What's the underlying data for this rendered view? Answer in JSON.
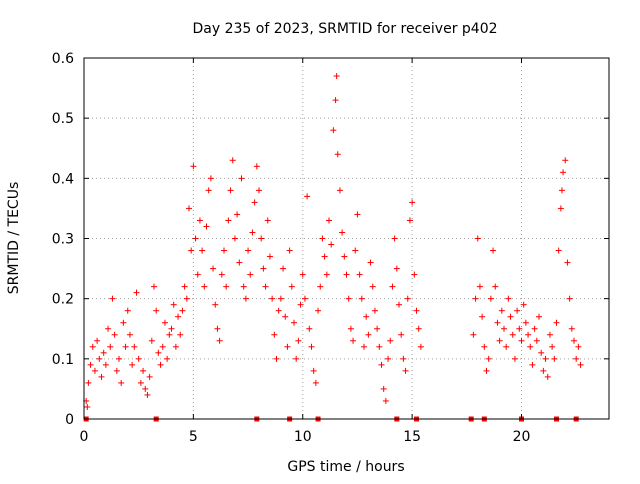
{
  "chart_data": {
    "type": "scatter",
    "title": "Day 235 of 2023, SRMTID for receiver p402",
    "xlabel": "GPS time / hours",
    "ylabel": "SRMTID / TECUs",
    "xlim": [
      0,
      24
    ],
    "ylim": [
      0,
      0.6
    ],
    "xticks": [
      0,
      5,
      10,
      15,
      20
    ],
    "yticks": [
      0,
      0.1,
      0.2,
      0.3,
      0.4,
      0.5,
      0.6
    ],
    "xtick_labels": [
      "0",
      "5",
      "10",
      "15",
      "20"
    ],
    "ytick_labels": [
      "0",
      "0.1",
      "0.2",
      "0.3",
      "0.4",
      "0.5",
      "0.6"
    ],
    "grid": true,
    "legend": "none",
    "marker": "plus",
    "series": [
      {
        "name": "SRMTID",
        "color": "#ff0000",
        "points": [
          [
            0.1,
            0.03
          ],
          [
            0.15,
            0.02
          ],
          [
            0.2,
            0.06
          ],
          [
            0.3,
            0.09
          ],
          [
            0.4,
            0.12
          ],
          [
            0.5,
            0.08
          ],
          [
            0.6,
            0.13
          ],
          [
            0.7,
            0.1
          ],
          [
            0.8,
            0.07
          ],
          [
            0.9,
            0.11
          ],
          [
            1.0,
            0.09
          ],
          [
            1.1,
            0.15
          ],
          [
            1.2,
            0.12
          ],
          [
            1.3,
            0.2
          ],
          [
            1.4,
            0.14
          ],
          [
            1.5,
            0.08
          ],
          [
            1.6,
            0.1
          ],
          [
            1.7,
            0.06
          ],
          [
            1.8,
            0.16
          ],
          [
            1.9,
            0.12
          ],
          [
            2.0,
            0.18
          ],
          [
            2.1,
            0.14
          ],
          [
            2.2,
            0.09
          ],
          [
            2.3,
            0.12
          ],
          [
            2.4,
            0.21
          ],
          [
            2.5,
            0.1
          ],
          [
            2.6,
            0.06
          ],
          [
            2.7,
            0.08
          ],
          [
            2.8,
            0.05
          ],
          [
            2.9,
            0.04
          ],
          [
            3.0,
            0.07
          ],
          [
            3.1,
            0.13
          ],
          [
            3.2,
            0.22
          ],
          [
            3.3,
            0.18
          ],
          [
            3.4,
            0.11
          ],
          [
            3.5,
            0.09
          ],
          [
            3.6,
            0.12
          ],
          [
            3.7,
            0.16
          ],
          [
            3.8,
            0.1
          ],
          [
            3.9,
            0.14
          ],
          [
            4.0,
            0.15
          ],
          [
            4.1,
            0.19
          ],
          [
            4.2,
            0.12
          ],
          [
            4.3,
            0.17
          ],
          [
            4.4,
            0.14
          ],
          [
            4.5,
            0.18
          ],
          [
            4.6,
            0.22
          ],
          [
            4.7,
            0.2
          ],
          [
            4.8,
            0.35
          ],
          [
            4.9,
            0.28
          ],
          [
            5.0,
            0.42
          ],
          [
            5.1,
            0.3
          ],
          [
            5.2,
            0.24
          ],
          [
            5.3,
            0.33
          ],
          [
            5.4,
            0.28
          ],
          [
            5.5,
            0.22
          ],
          [
            5.6,
            0.32
          ],
          [
            5.7,
            0.38
          ],
          [
            5.8,
            0.4
          ],
          [
            5.9,
            0.25
          ],
          [
            6.0,
            0.19
          ],
          [
            6.1,
            0.15
          ],
          [
            6.2,
            0.13
          ],
          [
            6.3,
            0.24
          ],
          [
            6.4,
            0.28
          ],
          [
            6.5,
            0.22
          ],
          [
            6.6,
            0.33
          ],
          [
            6.7,
            0.38
          ],
          [
            6.8,
            0.43
          ],
          [
            6.9,
            0.3
          ],
          [
            7.0,
            0.34
          ],
          [
            7.1,
            0.26
          ],
          [
            7.2,
            0.4
          ],
          [
            7.3,
            0.22
          ],
          [
            7.4,
            0.2
          ],
          [
            7.5,
            0.28
          ],
          [
            7.6,
            0.24
          ],
          [
            7.7,
            0.31
          ],
          [
            7.8,
            0.36
          ],
          [
            7.9,
            0.42
          ],
          [
            8.0,
            0.38
          ],
          [
            8.1,
            0.3
          ],
          [
            8.2,
            0.25
          ],
          [
            8.3,
            0.22
          ],
          [
            8.4,
            0.33
          ],
          [
            8.5,
            0.27
          ],
          [
            8.6,
            0.2
          ],
          [
            8.7,
            0.14
          ],
          [
            8.8,
            0.1
          ],
          [
            8.9,
            0.18
          ],
          [
            9.0,
            0.2
          ],
          [
            9.1,
            0.25
          ],
          [
            9.2,
            0.17
          ],
          [
            9.3,
            0.12
          ],
          [
            9.4,
            0.28
          ],
          [
            9.5,
            0.22
          ],
          [
            9.6,
            0.16
          ],
          [
            9.7,
            0.1
          ],
          [
            9.8,
            0.13
          ],
          [
            9.9,
            0.19
          ],
          [
            10.0,
            0.24
          ],
          [
            10.1,
            0.2
          ],
          [
            10.2,
            0.37
          ],
          [
            10.3,
            0.15
          ],
          [
            10.4,
            0.12
          ],
          [
            10.5,
            0.08
          ],
          [
            10.6,
            0.06
          ],
          [
            10.7,
            0.18
          ],
          [
            10.8,
            0.22
          ],
          [
            10.9,
            0.3
          ],
          [
            11.0,
            0.27
          ],
          [
            11.1,
            0.24
          ],
          [
            11.2,
            0.33
          ],
          [
            11.3,
            0.29
          ],
          [
            11.4,
            0.48
          ],
          [
            11.5,
            0.53
          ],
          [
            11.55,
            0.57
          ],
          [
            11.6,
            0.44
          ],
          [
            11.7,
            0.38
          ],
          [
            11.8,
            0.31
          ],
          [
            11.9,
            0.27
          ],
          [
            12.0,
            0.24
          ],
          [
            12.1,
            0.2
          ],
          [
            12.2,
            0.15
          ],
          [
            12.3,
            0.13
          ],
          [
            12.4,
            0.28
          ],
          [
            12.5,
            0.34
          ],
          [
            12.6,
            0.24
          ],
          [
            12.7,
            0.2
          ],
          [
            12.8,
            0.12
          ],
          [
            12.9,
            0.17
          ],
          [
            13.0,
            0.14
          ],
          [
            13.1,
            0.26
          ],
          [
            13.2,
            0.22
          ],
          [
            13.3,
            0.18
          ],
          [
            13.4,
            0.15
          ],
          [
            13.5,
            0.12
          ],
          [
            13.6,
            0.09
          ],
          [
            13.7,
            0.05
          ],
          [
            13.8,
            0.03
          ],
          [
            13.9,
            0.1
          ],
          [
            14.0,
            0.13
          ],
          [
            14.1,
            0.22
          ],
          [
            14.2,
            0.3
          ],
          [
            14.3,
            0.25
          ],
          [
            14.4,
            0.19
          ],
          [
            14.5,
            0.14
          ],
          [
            14.6,
            0.1
          ],
          [
            14.7,
            0.08
          ],
          [
            14.8,
            0.2
          ],
          [
            14.9,
            0.33
          ],
          [
            15.0,
            0.36
          ],
          [
            15.1,
            0.24
          ],
          [
            15.2,
            0.18
          ],
          [
            15.3,
            0.15
          ],
          [
            15.4,
            0.12
          ],
          [
            17.8,
            0.14
          ],
          [
            17.9,
            0.2
          ],
          [
            18.0,
            0.3
          ],
          [
            18.1,
            0.22
          ],
          [
            18.2,
            0.17
          ],
          [
            18.3,
            0.12
          ],
          [
            18.4,
            0.08
          ],
          [
            18.5,
            0.1
          ],
          [
            18.6,
            0.2
          ],
          [
            18.7,
            0.28
          ],
          [
            18.8,
            0.22
          ],
          [
            18.9,
            0.16
          ],
          [
            19.0,
            0.13
          ],
          [
            19.1,
            0.18
          ],
          [
            19.2,
            0.15
          ],
          [
            19.3,
            0.12
          ],
          [
            19.4,
            0.2
          ],
          [
            19.5,
            0.17
          ],
          [
            19.6,
            0.14
          ],
          [
            19.7,
            0.1
          ],
          [
            19.8,
            0.18
          ],
          [
            19.9,
            0.15
          ],
          [
            20.0,
            0.13
          ],
          [
            20.1,
            0.19
          ],
          [
            20.2,
            0.16
          ],
          [
            20.3,
            0.14
          ],
          [
            20.4,
            0.12
          ],
          [
            20.5,
            0.09
          ],
          [
            20.6,
            0.15
          ],
          [
            20.7,
            0.13
          ],
          [
            20.8,
            0.17
          ],
          [
            20.9,
            0.11
          ],
          [
            21.0,
            0.08
          ],
          [
            21.1,
            0.1
          ],
          [
            21.2,
            0.07
          ],
          [
            21.3,
            0.14
          ],
          [
            21.4,
            0.12
          ],
          [
            21.5,
            0.1
          ],
          [
            21.6,
            0.16
          ],
          [
            21.7,
            0.28
          ],
          [
            21.8,
            0.35
          ],
          [
            21.85,
            0.38
          ],
          [
            21.9,
            0.41
          ],
          [
            22.0,
            0.43
          ],
          [
            22.1,
            0.26
          ],
          [
            22.2,
            0.2
          ],
          [
            22.3,
            0.15
          ],
          [
            22.4,
            0.13
          ],
          [
            22.5,
            0.1
          ],
          [
            22.6,
            0.12
          ],
          [
            22.7,
            0.09
          ]
        ]
      }
    ],
    "gap_markers": [
      0.1,
      3.3,
      7.9,
      9.4,
      10.7,
      14.3,
      15.2,
      17.7,
      18.3,
      20.0,
      21.6,
      22.5
    ]
  }
}
